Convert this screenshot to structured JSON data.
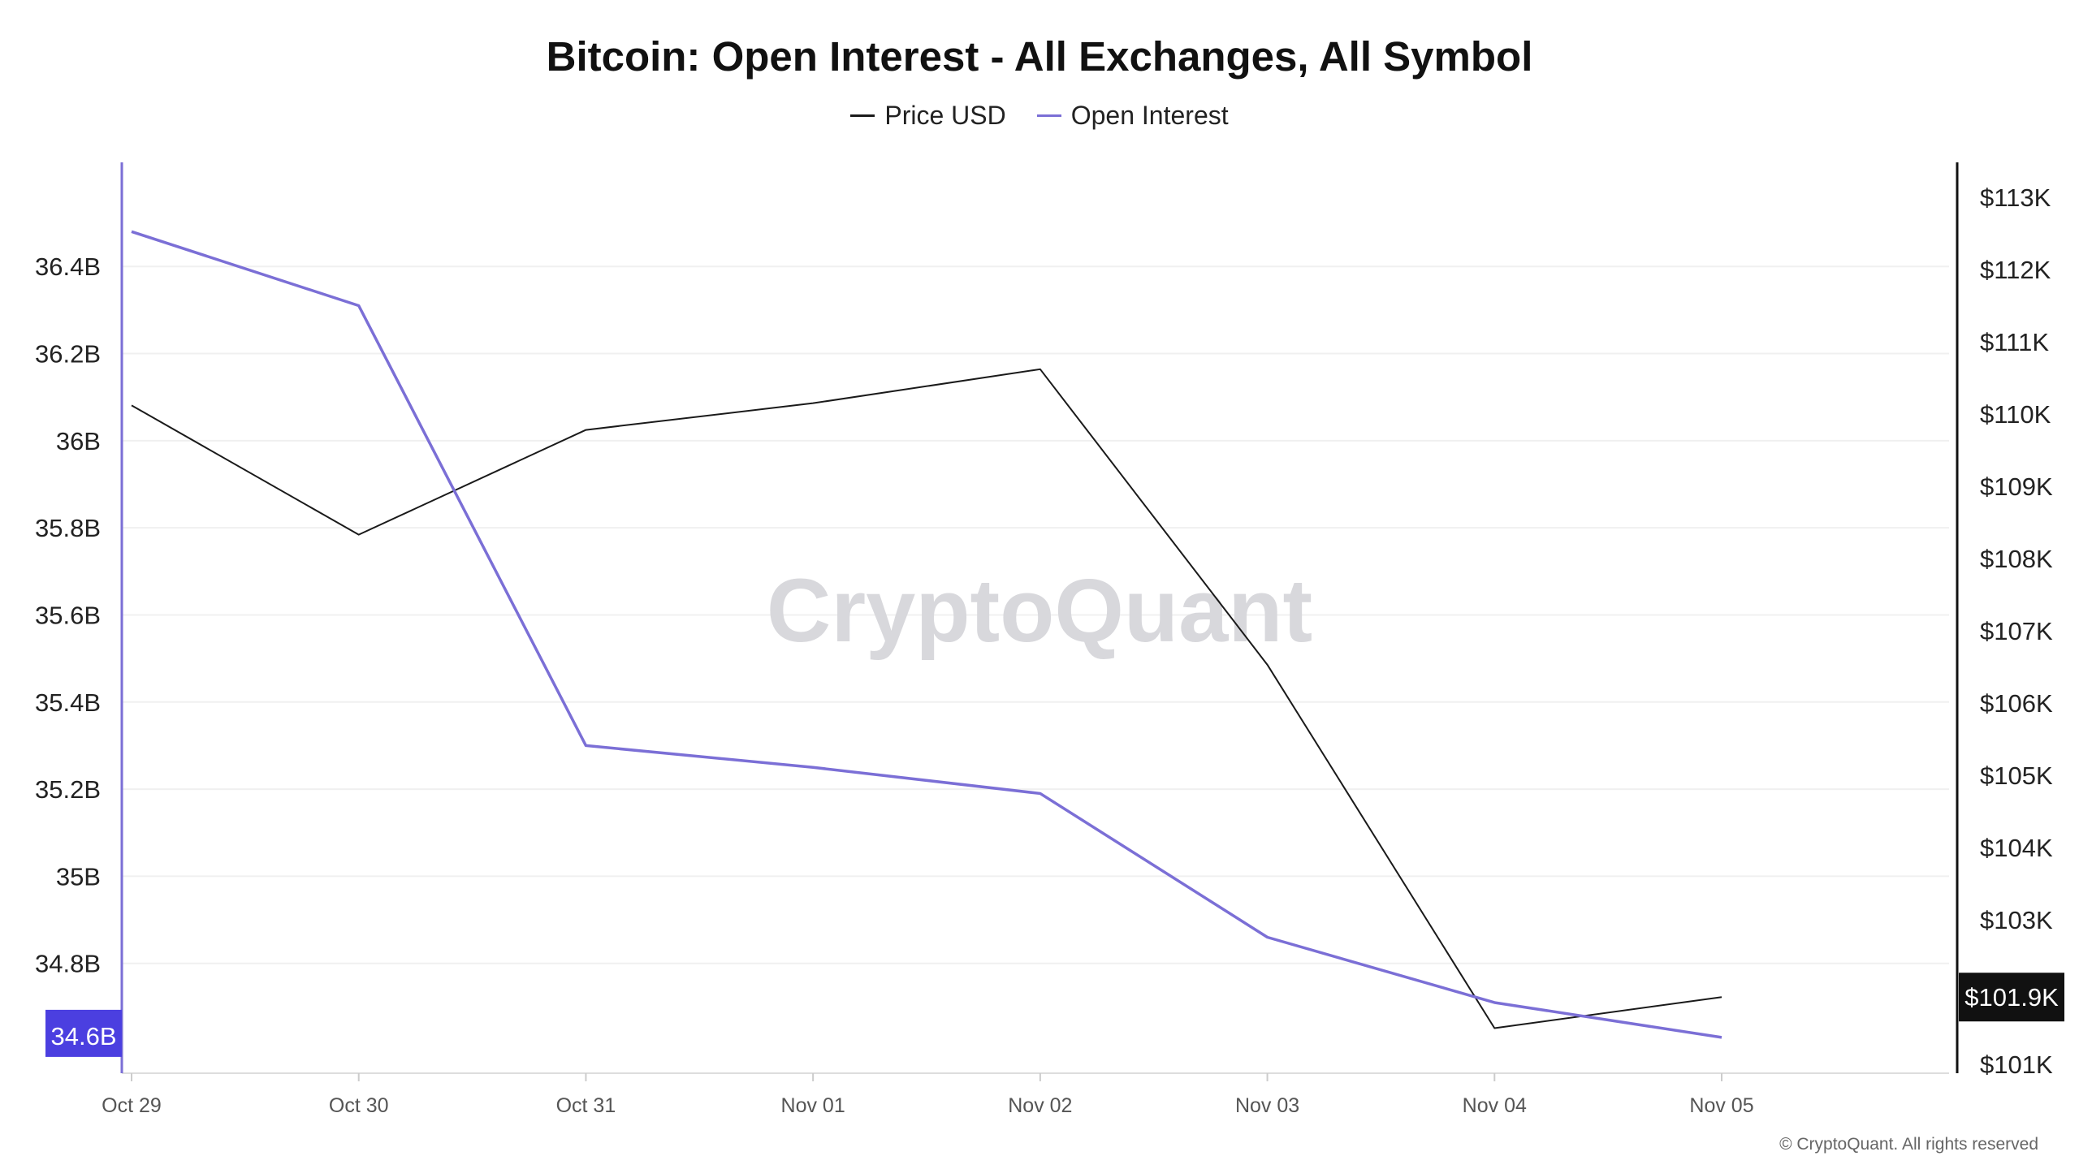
{
  "chart_data": {
    "type": "line",
    "title": "Bitcoin: Open Interest - All Exchanges, All Symbol",
    "x": [
      "Oct 29",
      "Oct 30",
      "Oct 31",
      "Nov 01",
      "Nov 02",
      "Nov 03",
      "Nov 04",
      "Nov 05"
    ],
    "series": [
      {
        "name": "Price USD",
        "axis": "right",
        "color": "#1a1a1a",
        "values": [
          110120,
          108330,
          109780,
          110150,
          110620,
          106530,
          101500,
          101930
        ]
      },
      {
        "name": "Open Interest",
        "axis": "left",
        "color": "#7b6fd6",
        "values": [
          36.48,
          36.31,
          35.3,
          35.25,
          35.19,
          34.86,
          34.71,
          34.63
        ]
      }
    ],
    "left_axis": {
      "ticks": [
        "34.8B",
        "35B",
        "35.2B",
        "35.4B",
        "35.6B",
        "35.8B",
        "36B",
        "36.2B",
        "36.4B"
      ],
      "tick_values": [
        34.8,
        35.0,
        35.2,
        35.4,
        35.6,
        35.8,
        36.0,
        36.2,
        36.4
      ],
      "range": [
        34.6,
        36.57
      ],
      "current_label": "34.6B",
      "current_color": "#4b3fe0"
    },
    "right_axis": {
      "ticks": [
        "$101K",
        "$103K",
        "$104K",
        "$105K",
        "$106K",
        "$107K",
        "$108K",
        "$109K",
        "$110K",
        "$111K",
        "$112K",
        "$113K"
      ],
      "tick_values": [
        101000,
        103000,
        104000,
        105000,
        106000,
        107000,
        108000,
        109000,
        110000,
        111000,
        112000,
        113000
      ],
      "range": [
        101000,
        113000
      ],
      "current_label": "$101.9K",
      "current_color": "#111111"
    },
    "legend": {
      "position": "top-center"
    },
    "grid": {
      "horizontal": true,
      "color": "#f0f0f0"
    }
  },
  "watermark": "CryptoQuant",
  "footer": "© CryptoQuant. All rights reserved"
}
